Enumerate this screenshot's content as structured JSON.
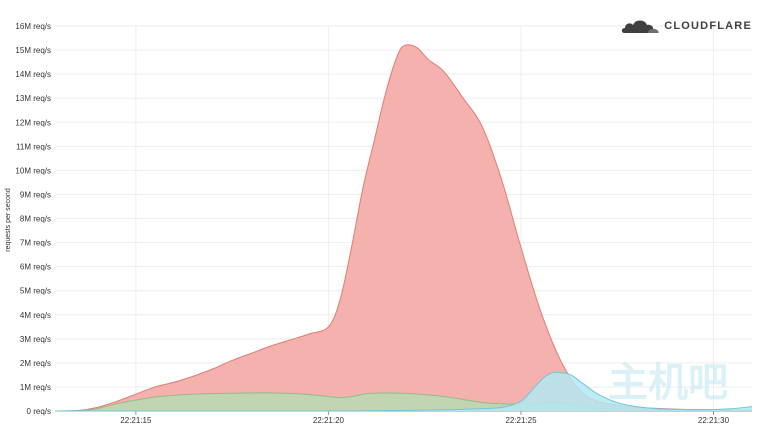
{
  "brand": {
    "name": "CLOUDFLARE",
    "colors": {
      "cloud_main": "#404041",
      "cloud_light": "#6d6e71"
    }
  },
  "watermark": "主机吧",
  "chart_data": {
    "type": "area",
    "ylabel": "requests per second",
    "xlabel": "",
    "ylim": [
      0,
      16
    ],
    "y_unit": "M req/s",
    "y_ticks": [
      "0 req/s",
      "1M req/s",
      "2M req/s",
      "3M req/s",
      "4M req/s",
      "5M req/s",
      "6M req/s",
      "7M req/s",
      "8M req/s",
      "9M req/s",
      "10M req/s",
      "11M req/s",
      "12M req/s",
      "13M req/s",
      "14M req/s",
      "15M req/s",
      "16M req/s"
    ],
    "x_ticks": [
      {
        "t": 15,
        "label": "22:21:15"
      },
      {
        "t": 20,
        "label": "22:21:20"
      },
      {
        "t": 25,
        "label": "22:21:25"
      },
      {
        "t": 30,
        "label": "22:21:30"
      }
    ],
    "xlim": [
      12.9,
      31.0
    ],
    "grid": true,
    "legend": "none",
    "series": [
      {
        "color": "#f4a9a4",
        "stroke": "#e07c75",
        "points": [
          [
            12.9,
            0
          ],
          [
            13.5,
            0.02
          ],
          [
            14.0,
            0.15
          ],
          [
            14.5,
            0.4
          ],
          [
            15.0,
            0.7
          ],
          [
            15.5,
            1.0
          ],
          [
            16.0,
            1.2
          ],
          [
            16.5,
            1.45
          ],
          [
            17.0,
            1.75
          ],
          [
            17.5,
            2.1
          ],
          [
            18.0,
            2.4
          ],
          [
            18.5,
            2.7
          ],
          [
            19.0,
            2.95
          ],
          [
            19.5,
            3.2
          ],
          [
            20.0,
            3.5
          ],
          [
            20.3,
            4.6
          ],
          [
            20.6,
            6.8
          ],
          [
            20.9,
            9.3
          ],
          [
            21.2,
            11.3
          ],
          [
            21.5,
            13.3
          ],
          [
            21.8,
            14.8
          ],
          [
            22.0,
            15.2
          ],
          [
            22.3,
            15.1
          ],
          [
            22.6,
            14.6
          ],
          [
            23.0,
            14.1
          ],
          [
            23.5,
            13.0
          ],
          [
            24.0,
            11.8
          ],
          [
            24.5,
            9.6
          ],
          [
            25.0,
            6.8
          ],
          [
            25.5,
            4.2
          ],
          [
            26.0,
            2.2
          ],
          [
            26.5,
            0.9
          ],
          [
            27.0,
            0.4
          ],
          [
            27.5,
            0.25
          ],
          [
            28.0,
            0.15
          ],
          [
            29.0,
            0.08
          ],
          [
            30.0,
            0.05
          ],
          [
            31.0,
            0.03
          ]
        ]
      },
      {
        "color": "#b9dcb3",
        "stroke": "#8cbf86",
        "points": [
          [
            12.9,
            0
          ],
          [
            13.5,
            0.02
          ],
          [
            14.0,
            0.1
          ],
          [
            14.5,
            0.3
          ],
          [
            15.0,
            0.45
          ],
          [
            15.5,
            0.58
          ],
          [
            16.0,
            0.65
          ],
          [
            16.5,
            0.7
          ],
          [
            17.0,
            0.72
          ],
          [
            17.5,
            0.74
          ],
          [
            18.0,
            0.75
          ],
          [
            18.5,
            0.75
          ],
          [
            19.0,
            0.73
          ],
          [
            19.5,
            0.68
          ],
          [
            20.0,
            0.6
          ],
          [
            20.3,
            0.55
          ],
          [
            20.6,
            0.6
          ],
          [
            21.0,
            0.72
          ],
          [
            21.5,
            0.75
          ],
          [
            22.0,
            0.73
          ],
          [
            22.5,
            0.68
          ],
          [
            23.0,
            0.6
          ],
          [
            23.5,
            0.48
          ],
          [
            24.0,
            0.35
          ],
          [
            24.5,
            0.3
          ],
          [
            25.0,
            0.28
          ],
          [
            25.5,
            0.3
          ],
          [
            26.0,
            0.35
          ],
          [
            26.5,
            0.2
          ],
          [
            27.0,
            0.12
          ],
          [
            28.0,
            0.06
          ],
          [
            29.0,
            0.03
          ],
          [
            30.0,
            0.02
          ],
          [
            31.0,
            0.02
          ]
        ]
      },
      {
        "color": "#b3e8f2",
        "stroke": "#6ec6da",
        "points": [
          [
            12.9,
            0
          ],
          [
            20.0,
            0
          ],
          [
            23.0,
            0.05
          ],
          [
            24.0,
            0.1
          ],
          [
            24.5,
            0.15
          ],
          [
            25.0,
            0.4
          ],
          [
            25.3,
            0.9
          ],
          [
            25.6,
            1.4
          ],
          [
            25.8,
            1.58
          ],
          [
            26.0,
            1.6
          ],
          [
            26.3,
            1.5
          ],
          [
            26.6,
            1.15
          ],
          [
            27.0,
            0.7
          ],
          [
            27.5,
            0.35
          ],
          [
            28.0,
            0.18
          ],
          [
            28.5,
            0.1
          ],
          [
            29.0,
            0.07
          ],
          [
            30.0,
            0.06
          ],
          [
            30.5,
            0.1
          ],
          [
            31.0,
            0.18
          ]
        ]
      }
    ]
  }
}
